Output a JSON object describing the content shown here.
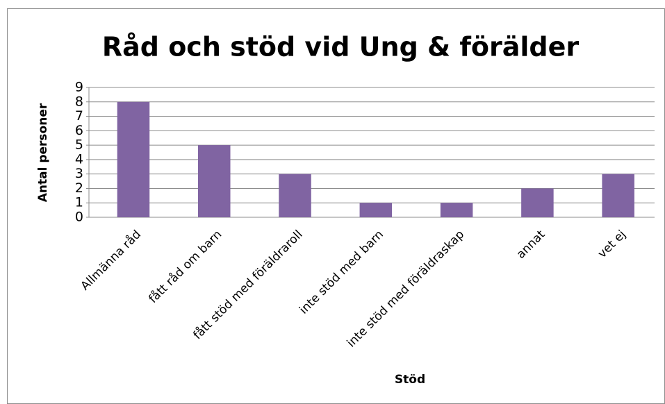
{
  "chart_data": {
    "type": "bar",
    "title": "Råd och stöd vid Ung & förälder",
    "x_label": "Stöd",
    "y_label": "Antal personer",
    "categories": [
      "Allmänna råd",
      "fått råd om barn",
      "fått stöd med föräldraroll",
      "inte stöd med barn",
      "inte stöd med föräldraskap",
      "annat",
      "vet ej"
    ],
    "values": [
      8,
      5,
      3,
      1,
      1,
      2,
      3
    ],
    "color": "#8064a2",
    "ylim": [
      0,
      9
    ],
    "yticks": [
      0,
      1,
      2,
      3,
      4,
      5,
      6,
      7,
      8,
      9
    ],
    "grid": true
  }
}
